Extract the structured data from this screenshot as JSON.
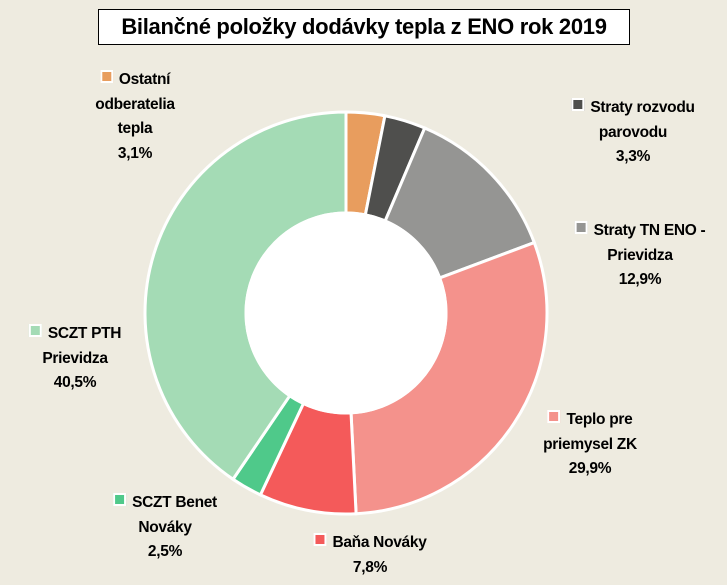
{
  "chart_data": {
    "type": "pie",
    "variant": "donut",
    "title": "Bilančné položky dodávky tepla z ENO rok 2019",
    "legend": "labels beside slices",
    "slices": [
      {
        "lines": [
          "Ostatní",
          "odberatelia",
          "tepla"
        ],
        "value": 3.1,
        "label": "3,1%",
        "color": "#E89D5E"
      },
      {
        "lines": [
          "Straty rozvodu",
          "parovodu"
        ],
        "value": 3.3,
        "label": "3,3%",
        "color": "#4F4F4D"
      },
      {
        "lines": [
          "Straty TN ENO -",
          "Prievidza"
        ],
        "value": 12.9,
        "label": "12,9%",
        "color": "#959593"
      },
      {
        "lines": [
          "Teplo pre",
          "priemysel ZK"
        ],
        "value": 29.9,
        "label": "29,9%",
        "color": "#F4928C"
      },
      {
        "lines": [
          "Baňa Nováky"
        ],
        "value": 7.8,
        "label": "7,8%",
        "color": "#F45A5A"
      },
      {
        "lines": [
          "SCZT Benet",
          "Nováky"
        ],
        "value": 2.5,
        "label": "2,5%",
        "color": "#4FC98A"
      },
      {
        "lines": [
          "SCZT PTH",
          "Prievidza"
        ],
        "value": 40.5,
        "label": "40,5%",
        "color": "#A4DBB5"
      }
    ]
  }
}
